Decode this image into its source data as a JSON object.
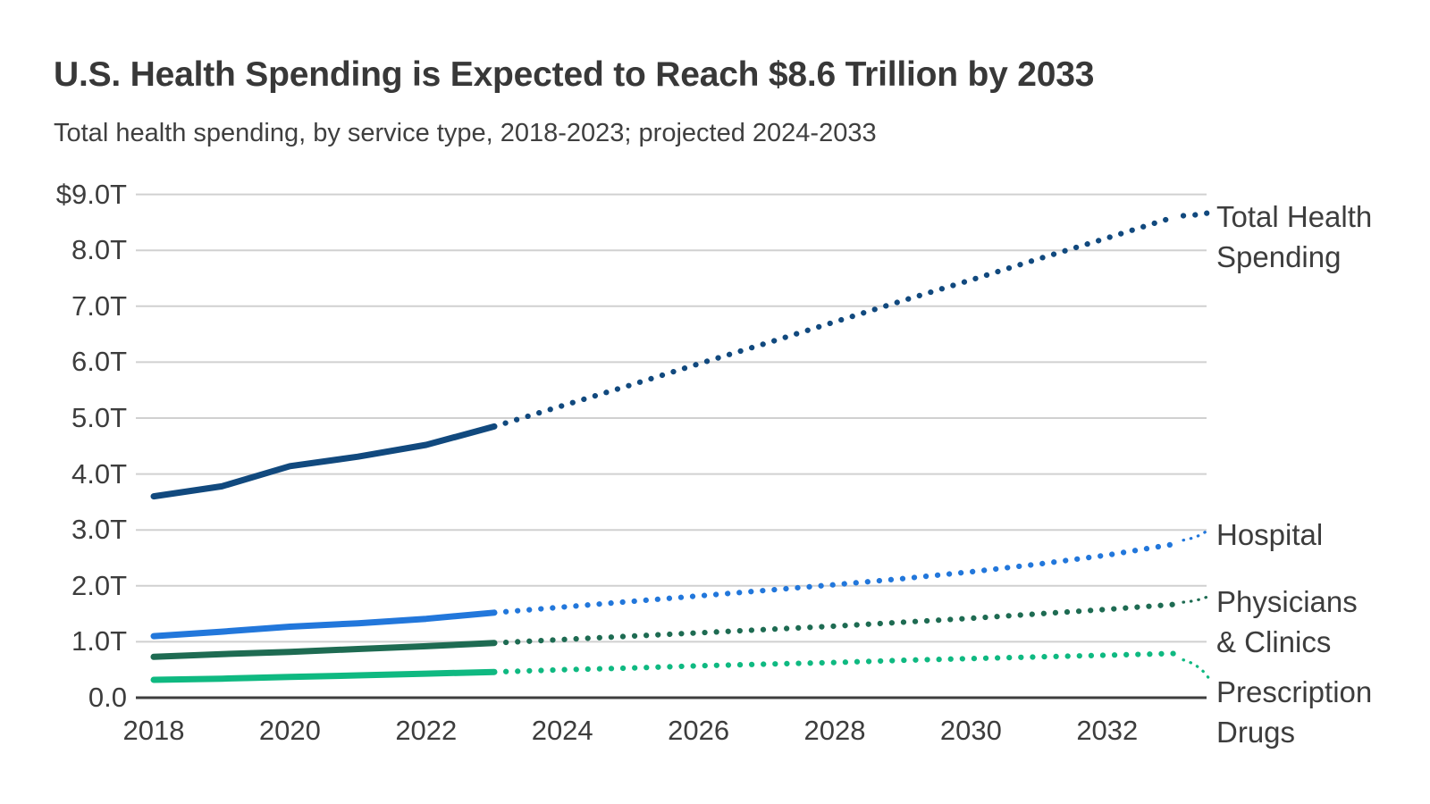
{
  "chart_data": {
    "type": "line",
    "title": "U.S. Health Spending is Expected to Reach $8.6 Trillion by 2033",
    "subtitle": "Total health spending, by service type, 2018-2023; projected 2024-2033",
    "x": [
      2018,
      2019,
      2020,
      2021,
      2022,
      2023,
      2024,
      2025,
      2026,
      2027,
      2028,
      2029,
      2030,
      2031,
      2032,
      2033
    ],
    "xlim": [
      2018,
      2033
    ],
    "ylim": [
      0,
      9
    ],
    "y_unit": "trillions of U.S. dollars",
    "grid": "horizontal",
    "legend_position": "labels-at-line-ends-right",
    "actual_period": "2018-2023",
    "projected_period": "2024-2033",
    "line_style_note": "solid = actual 2018-2023, dotted = projected 2024-2033",
    "y_ticks": [
      {
        "value": 9,
        "label": "$9.0T"
      },
      {
        "value": 8,
        "label": "8.0T"
      },
      {
        "value": 7,
        "label": "7.0T"
      },
      {
        "value": 6,
        "label": "6.0T"
      },
      {
        "value": 5,
        "label": "5.0T"
      },
      {
        "value": 4,
        "label": "4.0T"
      },
      {
        "value": 3,
        "label": "3.0T"
      },
      {
        "value": 2,
        "label": "2.0T"
      },
      {
        "value": 1,
        "label": "1.0T"
      },
      {
        "value": 0,
        "label": "0.0"
      }
    ],
    "x_ticks": [
      {
        "value": 2018,
        "label": "2018"
      },
      {
        "value": 2020,
        "label": "2020"
      },
      {
        "value": 2022,
        "label": "2022"
      },
      {
        "value": 2024,
        "label": "2024"
      },
      {
        "value": 2026,
        "label": "2026"
      },
      {
        "value": 2028,
        "label": "2028"
      },
      {
        "value": 2030,
        "label": "2030"
      },
      {
        "value": 2032,
        "label": "2032"
      }
    ],
    "series": [
      {
        "name": "Total Health Spending",
        "label": "Total Health\nSpending",
        "color": "#11497E",
        "projected_from": 2023,
        "values": [
          3.6,
          3.78,
          4.14,
          4.31,
          4.52,
          4.85,
          5.22,
          5.59,
          5.97,
          6.34,
          6.72,
          7.1,
          7.47,
          7.85,
          8.22,
          8.6
        ]
      },
      {
        "name": "Hospital",
        "label": "Hospital",
        "color": "#2277DB",
        "projected_from": 2023,
        "values": [
          1.1,
          1.18,
          1.27,
          1.33,
          1.41,
          1.52,
          1.62,
          1.72,
          1.82,
          1.92,
          2.02,
          2.13,
          2.25,
          2.39,
          2.55,
          2.75
        ]
      },
      {
        "name": "Physicians & Clinics",
        "label": "Physicians\n& Clinics",
        "color": "#1E6B52",
        "projected_from": 2023,
        "values": [
          0.73,
          0.78,
          0.82,
          0.87,
          0.92,
          0.98,
          1.04,
          1.1,
          1.16,
          1.22,
          1.28,
          1.35,
          1.42,
          1.5,
          1.58,
          1.67
        ]
      },
      {
        "name": "Prescription Drugs",
        "label": "Prescription\nDrugs",
        "color": "#0FB981",
        "projected_from": 2023,
        "values": [
          0.32,
          0.34,
          0.37,
          0.4,
          0.43,
          0.46,
          0.5,
          0.53,
          0.57,
          0.6,
          0.63,
          0.67,
          0.7,
          0.73,
          0.76,
          0.79
        ]
      }
    ]
  }
}
